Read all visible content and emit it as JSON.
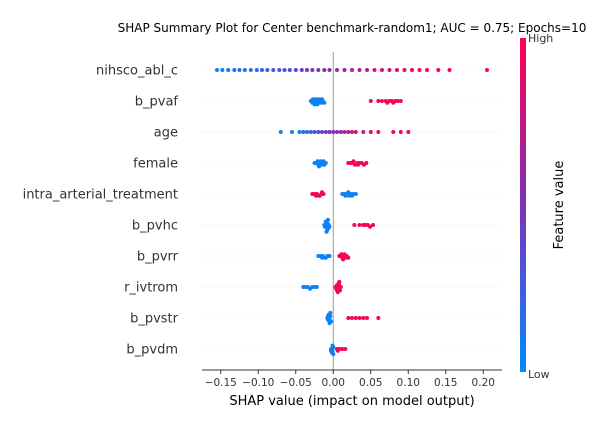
{
  "chart_data": {
    "type": "scatter",
    "subtype": "shap-beeswarm",
    "title": "SHAP Summary Plot for Center benchmark-random1; AUC = 0.75; Epochs=10",
    "xlabel": "SHAP value (impact on model output)",
    "xlim": [
      -0.175,
      0.225
    ],
    "xticks": [
      -0.15,
      -0.1,
      -0.05,
      0.0,
      0.05,
      0.1,
      0.15,
      0.2
    ],
    "xtick_labels": [
      "−0.15",
      "−0.10",
      "−0.05",
      "0.00",
      "0.05",
      "0.10",
      "0.15",
      "0.20"
    ],
    "zero_line": 0.0,
    "colorbar": {
      "label": "Feature value",
      "high_label": "High",
      "low_label": "Low",
      "low_color": "#008bfb",
      "mid_color": "#7c32b8",
      "high_color": "#ff0052"
    },
    "features": [
      {
        "name": "nihsco_abl_c",
        "points": [
          {
            "x": -0.155,
            "v": 0.05
          },
          {
            "x": -0.148,
            "v": 0.05
          },
          {
            "x": -0.14,
            "v": 0.1
          },
          {
            "x": -0.132,
            "v": 0.1
          },
          {
            "x": -0.125,
            "v": 0.1
          },
          {
            "x": -0.118,
            "v": 0.15
          },
          {
            "x": -0.11,
            "v": 0.15
          },
          {
            "x": -0.102,
            "v": 0.2
          },
          {
            "x": -0.095,
            "v": 0.2
          },
          {
            "x": -0.088,
            "v": 0.25
          },
          {
            "x": -0.08,
            "v": 0.3
          },
          {
            "x": -0.072,
            "v": 0.3
          },
          {
            "x": -0.065,
            "v": 0.35
          },
          {
            "x": -0.058,
            "v": 0.35
          },
          {
            "x": -0.05,
            "v": 0.4
          },
          {
            "x": -0.042,
            "v": 0.45
          },
          {
            "x": -0.035,
            "v": 0.45
          },
          {
            "x": -0.028,
            "v": 0.5
          },
          {
            "x": -0.02,
            "v": 0.5
          },
          {
            "x": -0.012,
            "v": 0.55
          },
          {
            "x": -0.005,
            "v": 0.55
          },
          {
            "x": 0.005,
            "v": 0.6
          },
          {
            "x": 0.015,
            "v": 0.6
          },
          {
            "x": 0.025,
            "v": 0.65
          },
          {
            "x": 0.035,
            "v": 0.7
          },
          {
            "x": 0.045,
            "v": 0.75
          },
          {
            "x": 0.055,
            "v": 0.8
          },
          {
            "x": 0.065,
            "v": 0.8
          },
          {
            "x": 0.075,
            "v": 0.85
          },
          {
            "x": 0.085,
            "v": 0.9
          },
          {
            "x": 0.095,
            "v": 0.9
          },
          {
            "x": 0.105,
            "v": 0.95
          },
          {
            "x": 0.115,
            "v": 0.95
          },
          {
            "x": 0.125,
            "v": 1.0
          },
          {
            "x": 0.14,
            "v": 1.0
          },
          {
            "x": 0.155,
            "v": 1.0
          },
          {
            "x": 0.205,
            "v": 1.0
          }
        ]
      },
      {
        "name": "b_pvaf",
        "points": [
          {
            "x": -0.03,
            "v": 0.05
          },
          {
            "x": -0.028,
            "v": 0.05
          },
          {
            "x": -0.026,
            "v": 0.05
          },
          {
            "x": -0.024,
            "v": 0.05
          },
          {
            "x": -0.022,
            "v": 0.05
          },
          {
            "x": -0.02,
            "v": 0.05
          },
          {
            "x": -0.018,
            "v": 0.05
          },
          {
            "x": -0.016,
            "v": 0.05
          },
          {
            "x": -0.014,
            "v": 0.05
          },
          {
            "x": -0.012,
            "v": 0.05
          },
          {
            "x": -0.027,
            "v": 0.05
          },
          {
            "x": -0.023,
            "v": 0.05
          },
          {
            "x": -0.019,
            "v": 0.05
          },
          {
            "x": -0.015,
            "v": 0.05
          },
          {
            "x": -0.025,
            "v": 0.05
          },
          {
            "x": -0.021,
            "v": 0.05
          },
          {
            "x": 0.05,
            "v": 0.95
          },
          {
            "x": 0.06,
            "v": 0.95
          },
          {
            "x": 0.065,
            "v": 0.95
          },
          {
            "x": 0.07,
            "v": 0.95
          },
          {
            "x": 0.072,
            "v": 0.95
          },
          {
            "x": 0.075,
            "v": 0.95
          },
          {
            "x": 0.078,
            "v": 0.95
          },
          {
            "x": 0.08,
            "v": 0.95
          },
          {
            "x": 0.083,
            "v": 0.95
          },
          {
            "x": 0.086,
            "v": 0.95
          },
          {
            "x": 0.09,
            "v": 0.95
          }
        ]
      },
      {
        "name": "age",
        "points": [
          {
            "x": -0.07,
            "v": 0.05
          },
          {
            "x": -0.055,
            "v": 0.1
          },
          {
            "x": -0.045,
            "v": 0.1
          },
          {
            "x": -0.04,
            "v": 0.15
          },
          {
            "x": -0.035,
            "v": 0.2
          },
          {
            "x": -0.03,
            "v": 0.25
          },
          {
            "x": -0.025,
            "v": 0.3
          },
          {
            "x": -0.02,
            "v": 0.35
          },
          {
            "x": -0.015,
            "v": 0.4
          },
          {
            "x": -0.01,
            "v": 0.45
          },
          {
            "x": -0.005,
            "v": 0.5
          },
          {
            "x": 0.0,
            "v": 0.5
          },
          {
            "x": 0.005,
            "v": 0.55
          },
          {
            "x": 0.01,
            "v": 0.6
          },
          {
            "x": 0.015,
            "v": 0.65
          },
          {
            "x": 0.02,
            "v": 0.7
          },
          {
            "x": 0.025,
            "v": 0.75
          },
          {
            "x": 0.03,
            "v": 0.8
          },
          {
            "x": 0.04,
            "v": 0.85
          },
          {
            "x": 0.05,
            "v": 0.9
          },
          {
            "x": 0.06,
            "v": 0.95
          },
          {
            "x": 0.08,
            "v": 1.0
          },
          {
            "x": 0.09,
            "v": 1.0
          },
          {
            "x": 0.1,
            "v": 1.0
          }
        ]
      },
      {
        "name": "female",
        "points": [
          {
            "x": -0.025,
            "v": 0.05
          },
          {
            "x": -0.022,
            "v": 0.05
          },
          {
            "x": -0.02,
            "v": 0.05
          },
          {
            "x": -0.018,
            "v": 0.05
          },
          {
            "x": -0.016,
            "v": 0.05
          },
          {
            "x": -0.014,
            "v": 0.05
          },
          {
            "x": -0.012,
            "v": 0.05
          },
          {
            "x": -0.01,
            "v": 0.05
          },
          {
            "x": -0.021,
            "v": 0.05
          },
          {
            "x": -0.017,
            "v": 0.05
          },
          {
            "x": -0.013,
            "v": 0.05
          },
          {
            "x": -0.019,
            "v": 0.05
          },
          {
            "x": 0.02,
            "v": 0.95
          },
          {
            "x": 0.023,
            "v": 0.95
          },
          {
            "x": 0.026,
            "v": 0.95
          },
          {
            "x": 0.029,
            "v": 0.95
          },
          {
            "x": 0.032,
            "v": 0.95
          },
          {
            "x": 0.035,
            "v": 0.95
          },
          {
            "x": 0.038,
            "v": 0.95
          },
          {
            "x": 0.041,
            "v": 0.95
          },
          {
            "x": 0.044,
            "v": 0.95
          },
          {
            "x": 0.027,
            "v": 0.95
          },
          {
            "x": 0.033,
            "v": 0.95
          }
        ]
      },
      {
        "name": "intra_arterial_treatment",
        "points": [
          {
            "x": -0.028,
            "v": 0.95
          },
          {
            "x": -0.025,
            "v": 0.95
          },
          {
            "x": -0.022,
            "v": 0.95
          },
          {
            "x": -0.019,
            "v": 0.95
          },
          {
            "x": -0.016,
            "v": 0.95
          },
          {
            "x": -0.013,
            "v": 0.95
          },
          {
            "x": -0.023,
            "v": 0.95
          },
          {
            "x": -0.018,
            "v": 0.95
          },
          {
            "x": -0.015,
            "v": 0.95
          },
          {
            "x": 0.012,
            "v": 0.05
          },
          {
            "x": 0.015,
            "v": 0.05
          },
          {
            "x": 0.018,
            "v": 0.05
          },
          {
            "x": 0.021,
            "v": 0.05
          },
          {
            "x": 0.024,
            "v": 0.05
          },
          {
            "x": 0.027,
            "v": 0.05
          },
          {
            "x": 0.03,
            "v": 0.05
          },
          {
            "x": 0.016,
            "v": 0.05
          },
          {
            "x": 0.02,
            "v": 0.05
          },
          {
            "x": 0.025,
            "v": 0.05
          }
        ]
      },
      {
        "name": "b_pvhc",
        "points": [
          {
            "x": -0.012,
            "v": 0.05
          },
          {
            "x": -0.011,
            "v": 0.05
          },
          {
            "x": -0.01,
            "v": 0.05
          },
          {
            "x": -0.009,
            "v": 0.05
          },
          {
            "x": -0.008,
            "v": 0.05
          },
          {
            "x": -0.007,
            "v": 0.05
          },
          {
            "x": -0.006,
            "v": 0.05
          },
          {
            "x": -0.005,
            "v": 0.05
          },
          {
            "x": -0.01,
            "v": 0.05
          },
          {
            "x": -0.008,
            "v": 0.05
          },
          {
            "x": -0.007,
            "v": 0.05
          },
          {
            "x": -0.009,
            "v": 0.05
          },
          {
            "x": 0.028,
            "v": 0.95
          },
          {
            "x": 0.035,
            "v": 0.95
          },
          {
            "x": 0.04,
            "v": 0.95
          },
          {
            "x": 0.043,
            "v": 0.95
          },
          {
            "x": 0.046,
            "v": 0.95
          },
          {
            "x": 0.049,
            "v": 0.95
          },
          {
            "x": 0.053,
            "v": 0.95
          }
        ]
      },
      {
        "name": "b_pvrr",
        "points": [
          {
            "x": -0.02,
            "v": 0.05
          },
          {
            "x": -0.017,
            "v": 0.05
          },
          {
            "x": -0.014,
            "v": 0.05
          },
          {
            "x": -0.011,
            "v": 0.05
          },
          {
            "x": -0.008,
            "v": 0.05
          },
          {
            "x": -0.005,
            "v": 0.05
          },
          {
            "x": -0.015,
            "v": 0.05
          },
          {
            "x": -0.01,
            "v": 0.05
          },
          {
            "x": 0.008,
            "v": 0.95
          },
          {
            "x": 0.01,
            "v": 0.95
          },
          {
            "x": 0.012,
            "v": 0.95
          },
          {
            "x": 0.014,
            "v": 0.95
          },
          {
            "x": 0.016,
            "v": 0.95
          },
          {
            "x": 0.018,
            "v": 0.95
          },
          {
            "x": 0.02,
            "v": 0.95
          },
          {
            "x": 0.011,
            "v": 0.95
          },
          {
            "x": 0.015,
            "v": 0.95
          },
          {
            "x": 0.013,
            "v": 0.95
          }
        ]
      },
      {
        "name": "r_ivtrom",
        "points": [
          {
            "x": -0.04,
            "v": 0.05
          },
          {
            "x": -0.037,
            "v": 0.05
          },
          {
            "x": -0.034,
            "v": 0.05
          },
          {
            "x": -0.031,
            "v": 0.05
          },
          {
            "x": -0.028,
            "v": 0.05
          },
          {
            "x": -0.025,
            "v": 0.05
          },
          {
            "x": -0.022,
            "v": 0.05
          },
          {
            "x": 0.003,
            "v": 0.95
          },
          {
            "x": 0.004,
            "v": 0.95
          },
          {
            "x": 0.005,
            "v": 0.95
          },
          {
            "x": 0.006,
            "v": 0.95
          },
          {
            "x": 0.007,
            "v": 0.95
          },
          {
            "x": 0.008,
            "v": 0.95
          },
          {
            "x": 0.009,
            "v": 0.95
          },
          {
            "x": 0.01,
            "v": 0.95
          },
          {
            "x": 0.005,
            "v": 0.95
          },
          {
            "x": 0.007,
            "v": 0.95
          },
          {
            "x": 0.006,
            "v": 0.95
          },
          {
            "x": 0.008,
            "v": 0.95
          }
        ]
      },
      {
        "name": "b_pvstr",
        "points": [
          {
            "x": -0.008,
            "v": 0.05
          },
          {
            "x": -0.007,
            "v": 0.05
          },
          {
            "x": -0.006,
            "v": 0.05
          },
          {
            "x": -0.005,
            "v": 0.05
          },
          {
            "x": -0.004,
            "v": 0.05
          },
          {
            "x": -0.003,
            "v": 0.05
          },
          {
            "x": -0.006,
            "v": 0.05
          },
          {
            "x": -0.005,
            "v": 0.05
          },
          {
            "x": -0.004,
            "v": 0.05
          },
          {
            "x": -0.007,
            "v": 0.05
          },
          {
            "x": 0.02,
            "v": 0.95
          },
          {
            "x": 0.025,
            "v": 0.95
          },
          {
            "x": 0.03,
            "v": 0.95
          },
          {
            "x": 0.035,
            "v": 0.95
          },
          {
            "x": 0.04,
            "v": 0.95
          },
          {
            "x": 0.045,
            "v": 0.95
          },
          {
            "x": 0.06,
            "v": 0.95
          }
        ]
      },
      {
        "name": "b_pvdm",
        "points": [
          {
            "x": -0.003,
            "v": 0.05
          },
          {
            "x": -0.002,
            "v": 0.05
          },
          {
            "x": -0.001,
            "v": 0.05
          },
          {
            "x": 0.0,
            "v": 0.05
          },
          {
            "x": -0.002,
            "v": 0.05
          },
          {
            "x": -0.001,
            "v": 0.05
          },
          {
            "x": 0.0,
            "v": 0.05
          },
          {
            "x": -0.003,
            "v": 0.05
          },
          {
            "x": 0.005,
            "v": 0.95
          },
          {
            "x": 0.008,
            "v": 0.95
          },
          {
            "x": 0.012,
            "v": 0.95
          },
          {
            "x": 0.016,
            "v": 0.95
          },
          {
            "x": 0.006,
            "v": 0.95
          }
        ]
      }
    ]
  }
}
